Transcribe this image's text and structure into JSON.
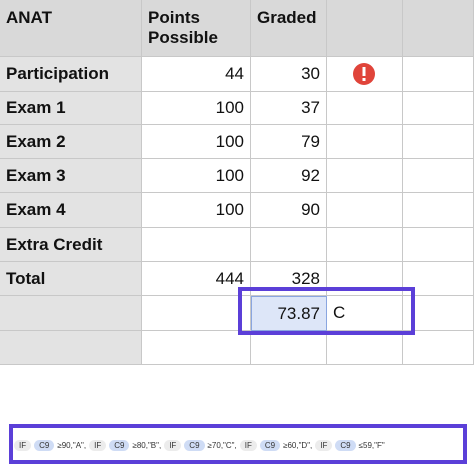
{
  "table": {
    "header": [
      "ANAT",
      "Points Possible",
      "Graded"
    ],
    "rows": [
      [
        "Participation",
        44,
        30
      ],
      [
        "Exam 1",
        100,
        37
      ],
      [
        "Exam 2",
        100,
        79
      ],
      [
        "Exam 3",
        100,
        92
      ],
      [
        "Exam 4",
        100,
        90
      ],
      [
        "Extra Credit"
      ],
      [
        "Total",
        444,
        328
      ]
    ],
    "result": {
      "value": 73.87,
      "grade": "C"
    }
  },
  "formula": [
    {
      "fn": "IF",
      "ref": "C9",
      "rest": "≥90,\"A\","
    },
    {
      "fn": "IF",
      "ref": "C9",
      "rest": "≥80,\"B\","
    },
    {
      "fn": "IF",
      "ref": "C9",
      "rest": "≥70,\"C\","
    },
    {
      "fn": "IF",
      "ref": "C9",
      "rest": "≥60,\"D\","
    },
    {
      "fn": "IF",
      "ref": "C9",
      "rest": "≤59,\"F\""
    }
  ]
}
